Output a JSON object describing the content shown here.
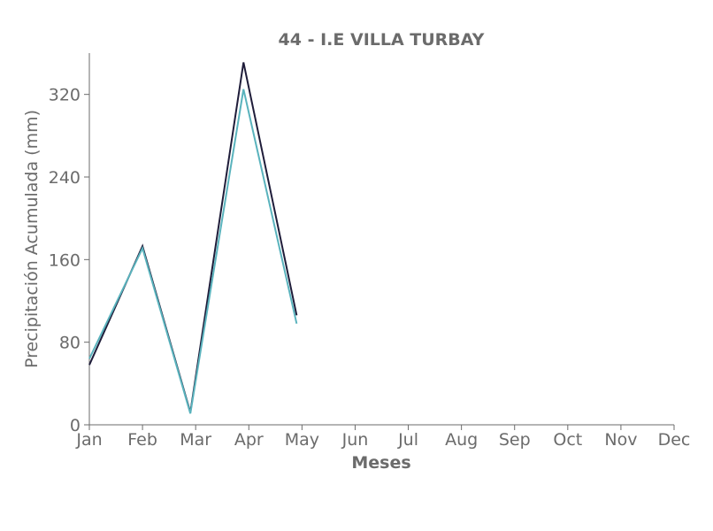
{
  "chart_data": {
    "type": "line",
    "title": "44 - I.E VILLA TURBAY",
    "xlabel": "Meses",
    "ylabel": "Precipitación Acumulada (mm)",
    "categories": [
      "Jan",
      "Feb",
      "Mar",
      "Apr",
      "May",
      "Jun",
      "Jul",
      "Aug",
      "Sep",
      "Oct",
      "Nov",
      "Dec"
    ],
    "yticks": [
      0,
      80,
      160,
      240,
      320
    ],
    "ylim": [
      0,
      360
    ],
    "grid": false,
    "series": [
      {
        "color": "#1f1d3a",
        "x": [
          0,
          1,
          1.9,
          2.9,
          3.9
        ],
        "values": [
          58,
          173,
          12,
          351,
          106
        ]
      },
      {
        "color": "#5ab3bd",
        "x": [
          0,
          1,
          1.9,
          2.9,
          3.9
        ],
        "values": [
          64,
          171,
          11,
          325,
          98
        ]
      }
    ]
  }
}
